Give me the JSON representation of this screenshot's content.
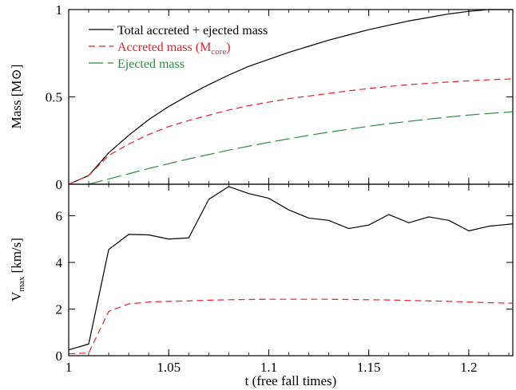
{
  "chart_data": [
    {
      "type": "line",
      "ylabel": "Mass [M⊙]",
      "ylabel_main": "Mass [M",
      "ylabel_symbol": "⊙",
      "ylabel_close": "]",
      "xlim": [
        1.0,
        1.222
      ],
      "ylim": [
        0,
        1
      ],
      "yticks": [
        0,
        0.5,
        1
      ],
      "ytick_labels": [
        "0",
        "0.5",
        "1"
      ],
      "grid": false,
      "legend_position": "top-left",
      "series": [
        {
          "name": "Total accreted + ejected mass",
          "style": "solid",
          "color": "#000000",
          "x": [
            1.0,
            1.01,
            1.02,
            1.03,
            1.04,
            1.05,
            1.06,
            1.07,
            1.08,
            1.09,
            1.1,
            1.11,
            1.12,
            1.13,
            1.14,
            1.15,
            1.16,
            1.17,
            1.18,
            1.19,
            1.2,
            1.21,
            1.222
          ],
          "y": [
            0.0,
            0.05,
            0.18,
            0.28,
            0.37,
            0.445,
            0.51,
            0.57,
            0.625,
            0.675,
            0.715,
            0.755,
            0.79,
            0.825,
            0.855,
            0.885,
            0.91,
            0.935,
            0.955,
            0.975,
            0.99,
            1.0,
            1.0
          ]
        },
        {
          "name": "Accreted mass (Mcore)",
          "name_main": "Accreted mass (M",
          "name_sub": "core",
          "name_close": ")",
          "style": "dashed",
          "color": "#e8202a",
          "x": [
            1.0,
            1.01,
            1.02,
            1.03,
            1.04,
            1.05,
            1.06,
            1.07,
            1.08,
            1.09,
            1.1,
            1.11,
            1.12,
            1.13,
            1.14,
            1.15,
            1.16,
            1.17,
            1.18,
            1.19,
            1.2,
            1.21,
            1.222
          ],
          "y": [
            0.0,
            0.05,
            0.165,
            0.23,
            0.285,
            0.33,
            0.365,
            0.395,
            0.425,
            0.45,
            0.47,
            0.49,
            0.505,
            0.52,
            0.535,
            0.548,
            0.56,
            0.57,
            0.578,
            0.585,
            0.592,
            0.598,
            0.603
          ]
        },
        {
          "name": "Ejected mass",
          "style": "long-dashed",
          "color": "#2e8b46",
          "x": [
            1.01,
            1.02,
            1.03,
            1.04,
            1.05,
            1.06,
            1.07,
            1.08,
            1.09,
            1.1,
            1.11,
            1.12,
            1.13,
            1.14,
            1.15,
            1.16,
            1.17,
            1.18,
            1.19,
            1.2,
            1.21,
            1.222
          ],
          "y": [
            0.0,
            0.03,
            0.06,
            0.09,
            0.118,
            0.145,
            0.17,
            0.195,
            0.218,
            0.24,
            0.26,
            0.28,
            0.298,
            0.315,
            0.332,
            0.347,
            0.36,
            0.373,
            0.385,
            0.396,
            0.405,
            0.415
          ]
        }
      ]
    },
    {
      "type": "line",
      "xlabel": "t (free fall times)",
      "ylabel": "Vmax [km/s]",
      "ylabel_main": "V",
      "ylabel_sub": "max",
      "ylabel_rest": " [km/s]",
      "xlim": [
        1.0,
        1.222
      ],
      "ylim": [
        0,
        7.35
      ],
      "xticks": [
        1,
        1.05,
        1.1,
        1.15,
        1.2
      ],
      "xtick_labels": [
        "1",
        "1.05",
        "1.1",
        "1.15",
        "1.2"
      ],
      "yticks": [
        0,
        2,
        4,
        6
      ],
      "ytick_labels": [
        "0",
        "2",
        "4",
        "6"
      ],
      "grid": false,
      "series": [
        {
          "style": "solid",
          "color": "#000000",
          "x": [
            1.0,
            1.01,
            1.02,
            1.03,
            1.04,
            1.05,
            1.06,
            1.07,
            1.08,
            1.09,
            1.1,
            1.11,
            1.12,
            1.13,
            1.14,
            1.15,
            1.16,
            1.17,
            1.18,
            1.19,
            1.2,
            1.21,
            1.222
          ],
          "y": [
            0.25,
            0.5,
            4.55,
            5.2,
            5.18,
            5.0,
            5.05,
            6.7,
            7.25,
            6.95,
            6.75,
            6.25,
            5.9,
            5.8,
            5.45,
            5.6,
            6.05,
            5.7,
            5.95,
            5.8,
            5.35,
            5.55,
            5.65
          ]
        },
        {
          "style": "dashed",
          "color": "#e8202a",
          "x": [
            1.0,
            1.01,
            1.02,
            1.03,
            1.04,
            1.05,
            1.06,
            1.07,
            1.08,
            1.09,
            1.1,
            1.11,
            1.12,
            1.13,
            1.14,
            1.15,
            1.16,
            1.17,
            1.18,
            1.19,
            1.2,
            1.21,
            1.222
          ],
          "y": [
            0.08,
            0.12,
            1.9,
            2.22,
            2.3,
            2.33,
            2.35,
            2.38,
            2.4,
            2.41,
            2.42,
            2.42,
            2.42,
            2.42,
            2.41,
            2.4,
            2.39,
            2.37,
            2.35,
            2.33,
            2.3,
            2.27,
            2.25
          ]
        }
      ]
    }
  ]
}
